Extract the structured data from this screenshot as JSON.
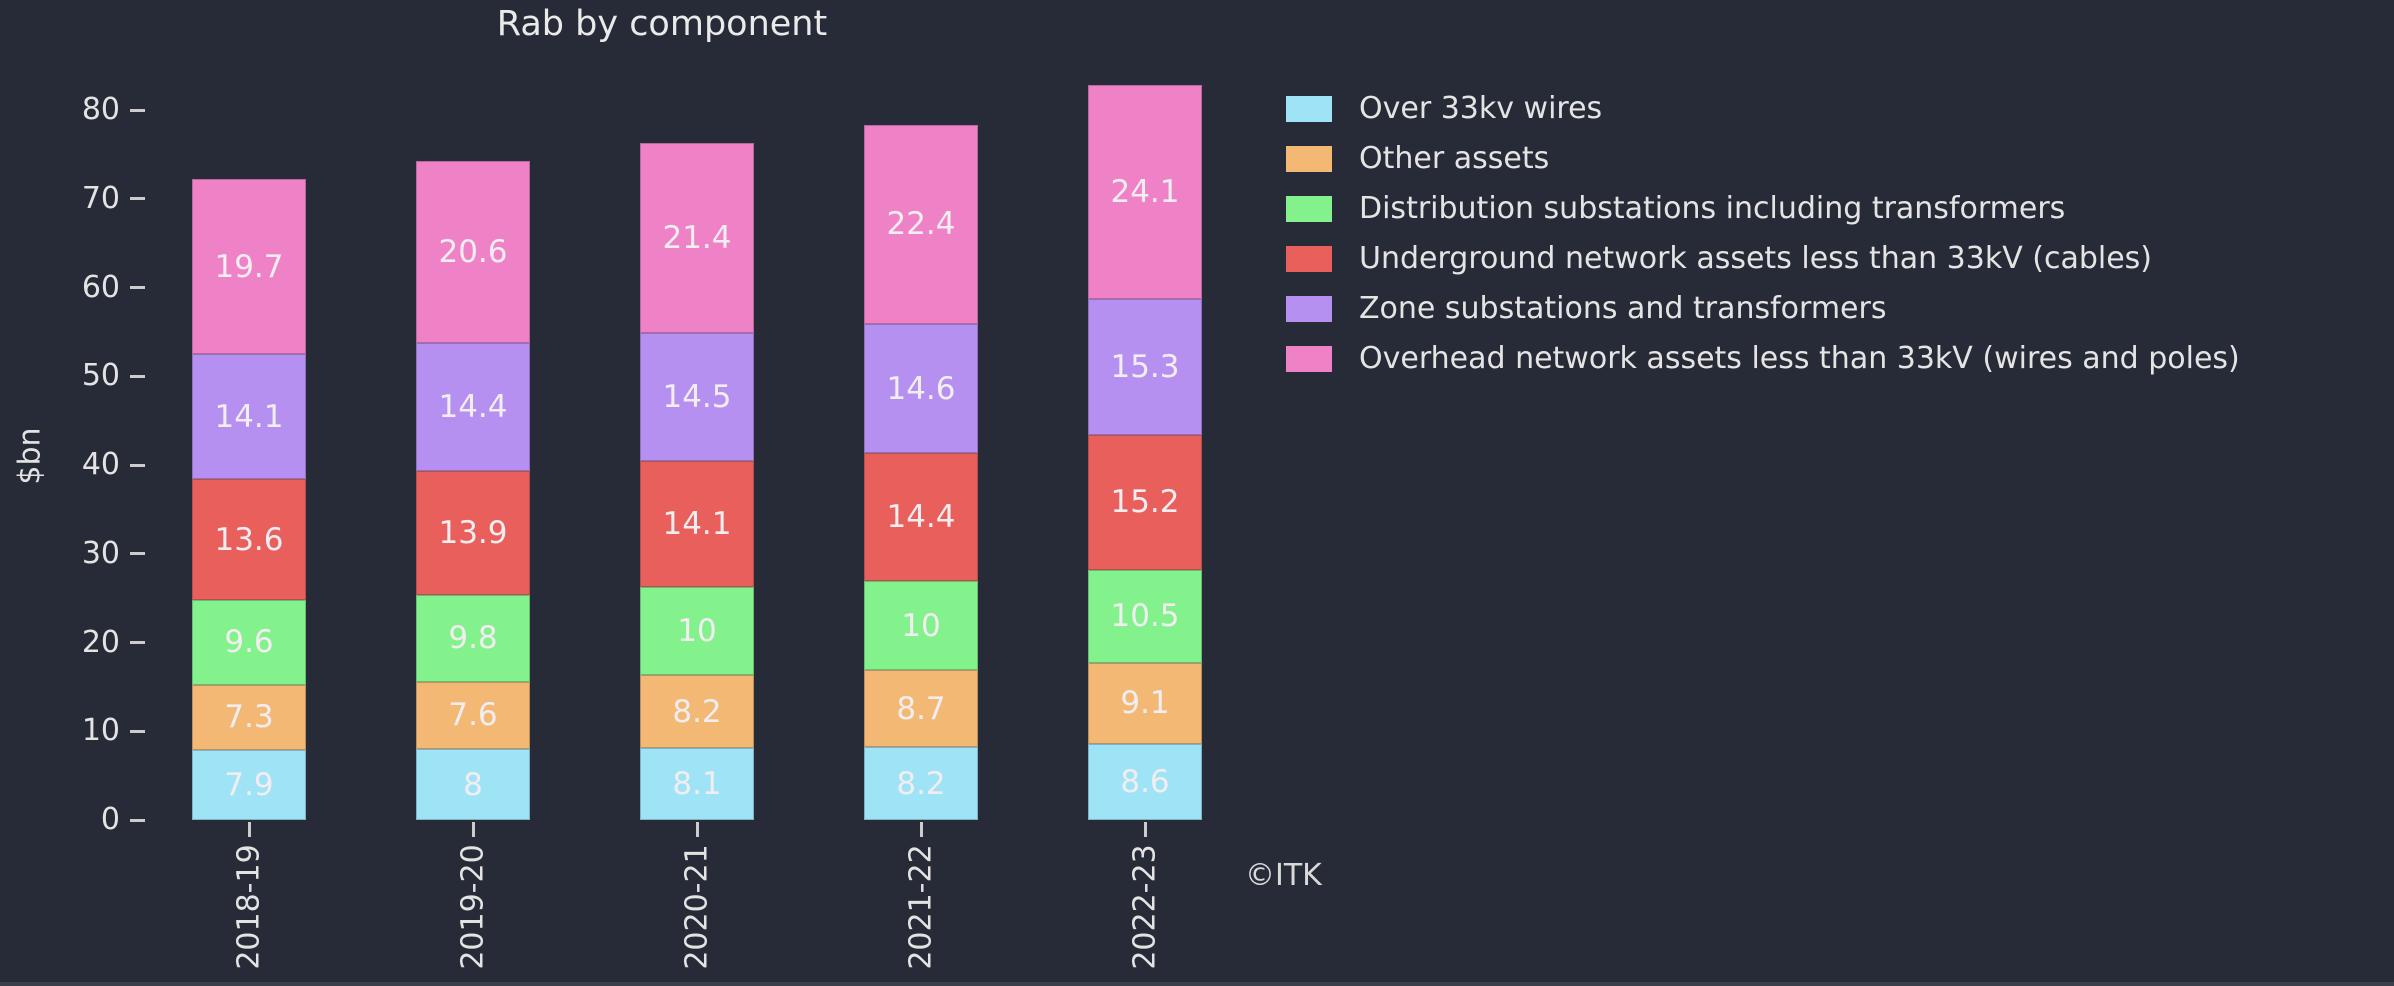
{
  "window": {
    "background_color": "#272b37",
    "text_color": "#e3e3e3"
  },
  "watermark": "©ITK",
  "chart_data": {
    "type": "bar",
    "stacked": true,
    "title": "Rab by component",
    "xlabel": "",
    "ylabel": "$bn",
    "categories": [
      "2018-19",
      "2019-20",
      "2020-21",
      "2021-22",
      "2022-23"
    ],
    "series": [
      {
        "name": "Over 33kv wires",
        "color": "#9fe3f7",
        "values": [
          7.9,
          8,
          8.1,
          8.2,
          8.6
        ]
      },
      {
        "name": "Other assets",
        "color": "#f3b974",
        "values": [
          7.3,
          7.6,
          8.2,
          8.7,
          9.1
        ]
      },
      {
        "name": "Distribution substations including transformers",
        "color": "#83f28c",
        "values": [
          9.6,
          9.8,
          10,
          10,
          10.5
        ]
      },
      {
        "name": "Underground network assets less than 33kV (cables)",
        "color": "#e95f5c",
        "values": [
          13.6,
          13.9,
          14.1,
          14.4,
          15.2
        ]
      },
      {
        "name": "Zone substations and transformers",
        "color": "#b590f0",
        "values": [
          14.1,
          14.4,
          14.5,
          14.6,
          15.3
        ]
      },
      {
        "name": "Overhead network assets less than 33kV (wires and poles)",
        "color": "#ef82c6",
        "values": [
          19.7,
          20.6,
          21.4,
          22.4,
          24.1
        ]
      }
    ],
    "totals": [
      72.2,
      74.3,
      76.3,
      78.3,
      82.8
    ],
    "yticks": [
      0,
      10,
      20,
      30,
      40,
      50,
      60,
      70,
      80
    ],
    "ylim": [
      0,
      86
    ],
    "xtick_rotation": 90,
    "grid": false,
    "bar_labels": true,
    "bar_label_color": "#f1edf0",
    "legend_position": "upper right",
    "legend_text_color": "#e4e4e4"
  }
}
